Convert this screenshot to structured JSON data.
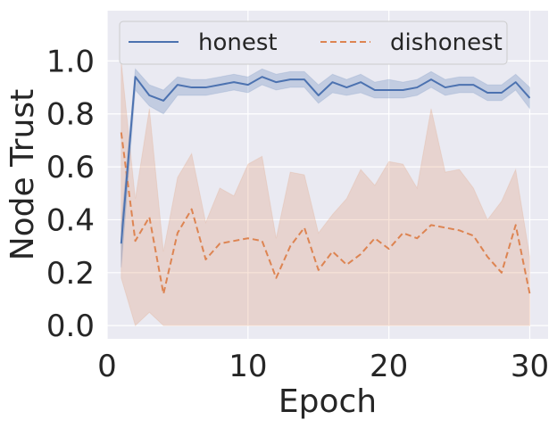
{
  "chart_data": {
    "type": "line",
    "xlabel": "Epoch",
    "ylabel": "Node Trust",
    "xlim": [
      0,
      31.3
    ],
    "ylim": [
      -0.05,
      1.19
    ],
    "xticks": [
      0,
      10,
      20,
      30
    ],
    "yticks": [
      0.0,
      0.2,
      0.4,
      0.6,
      0.8,
      1.0
    ],
    "ytick_labels": [
      "0.0",
      "0.2",
      "0.4",
      "0.6",
      "0.8",
      "1.0"
    ],
    "grid": true,
    "legend": "top, inside, 2 columns",
    "x": [
      1,
      2,
      3,
      4,
      5,
      6,
      7,
      8,
      9,
      10,
      11,
      12,
      13,
      14,
      15,
      16,
      17,
      18,
      19,
      20,
      21,
      22,
      23,
      24,
      25,
      26,
      27,
      28,
      29,
      30
    ],
    "series": [
      {
        "name": "honest",
        "style": "solid",
        "color": "#4c72b0",
        "values": [
          0.31,
          0.94,
          0.87,
          0.85,
          0.91,
          0.9,
          0.9,
          0.91,
          0.92,
          0.91,
          0.94,
          0.92,
          0.93,
          0.93,
          0.87,
          0.92,
          0.9,
          0.92,
          0.89,
          0.89,
          0.89,
          0.9,
          0.93,
          0.9,
          0.91,
          0.91,
          0.88,
          0.88,
          0.92,
          0.86
        ],
        "lower": [
          0.22,
          0.89,
          0.83,
          0.8,
          0.87,
          0.87,
          0.87,
          0.88,
          0.89,
          0.88,
          0.91,
          0.89,
          0.9,
          0.9,
          0.84,
          0.88,
          0.87,
          0.88,
          0.86,
          0.86,
          0.86,
          0.87,
          0.9,
          0.87,
          0.88,
          0.88,
          0.85,
          0.85,
          0.89,
          0.82
        ],
        "upper": [
          0.38,
          0.97,
          0.91,
          0.89,
          0.94,
          0.93,
          0.93,
          0.94,
          0.95,
          0.94,
          0.97,
          0.95,
          0.96,
          0.96,
          0.91,
          0.95,
          0.93,
          0.95,
          0.92,
          0.93,
          0.92,
          0.93,
          0.96,
          0.93,
          0.94,
          0.94,
          0.91,
          0.91,
          0.95,
          0.9
        ]
      },
      {
        "name": "dishonest",
        "style": "dashed",
        "color": "#dd8452",
        "values": [
          0.73,
          0.32,
          0.41,
          0.12,
          0.35,
          0.44,
          0.25,
          0.31,
          0.32,
          0.33,
          0.32,
          0.18,
          0.3,
          0.37,
          0.21,
          0.28,
          0.23,
          0.27,
          0.33,
          0.29,
          0.35,
          0.33,
          0.38,
          0.37,
          0.36,
          0.34,
          0.26,
          0.2,
          0.38,
          0.12
        ],
        "lower": [
          0.18,
          0.0,
          0.05,
          0.0,
          0.0,
          0.0,
          0.0,
          0.0,
          0.0,
          0.0,
          0.0,
          0.0,
          0.0,
          0.0,
          0.0,
          0.0,
          0.0,
          0.0,
          0.0,
          0.0,
          0.0,
          0.0,
          0.0,
          0.0,
          0.0,
          0.0,
          0.0,
          0.0,
          0.0,
          0.0
        ],
        "upper": [
          1.0,
          0.48,
          0.82,
          0.28,
          0.56,
          0.65,
          0.39,
          0.52,
          0.49,
          0.61,
          0.64,
          0.33,
          0.58,
          0.57,
          0.35,
          0.42,
          0.48,
          0.59,
          0.53,
          0.62,
          0.61,
          0.52,
          0.82,
          0.58,
          0.59,
          0.52,
          0.4,
          0.47,
          0.59,
          0.26
        ]
      }
    ]
  },
  "colors": {
    "plot_background": "#eaeaf2",
    "grid": "#ffffff",
    "text": "#262626"
  }
}
